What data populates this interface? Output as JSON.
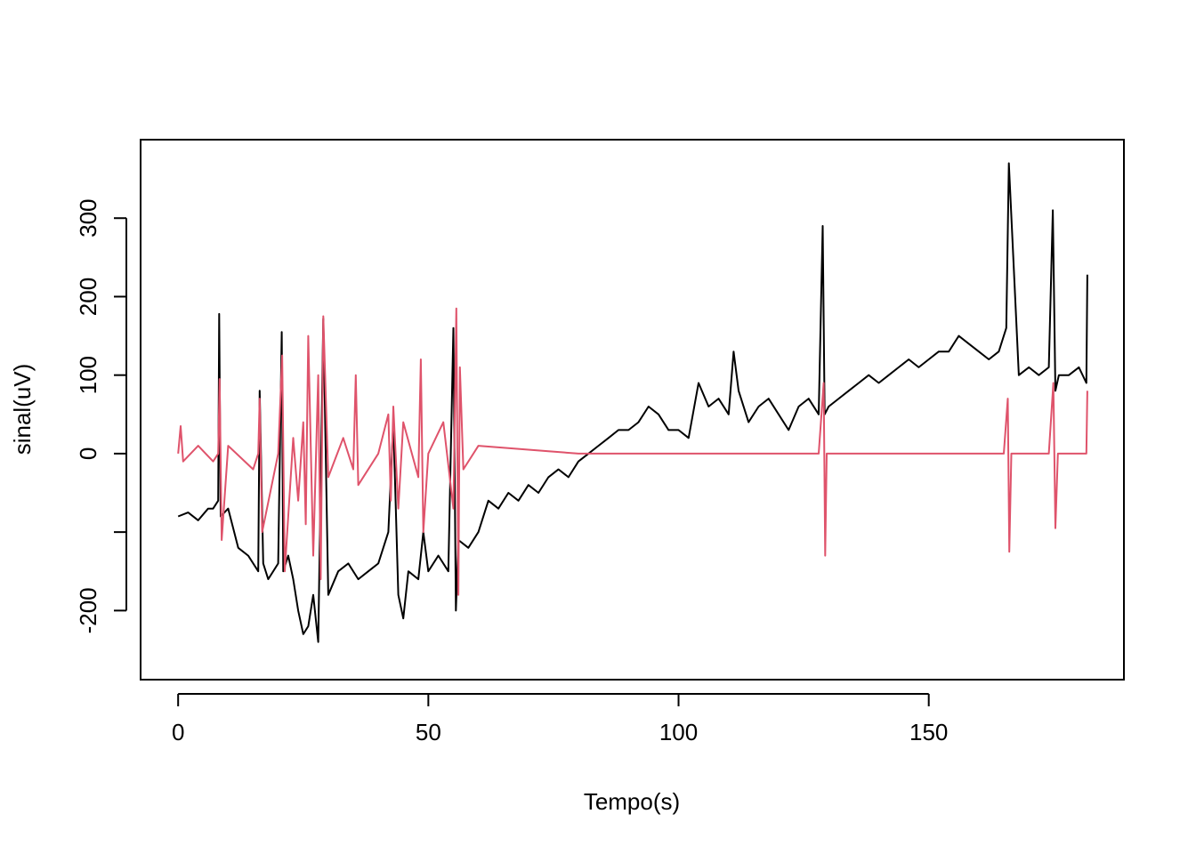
{
  "chart_data": {
    "type": "line",
    "title": "",
    "xlabel": "Tempo(s)",
    "ylabel": "sinal(uV)",
    "xlim": [
      -7.5,
      189
    ],
    "ylim": [
      -288,
      400
    ],
    "x_ticks": [
      0,
      50,
      100,
      150
    ],
    "x_tick_labels": [
      "0",
      "50",
      "100",
      "150"
    ],
    "y_ticks": [
      -200,
      -100,
      0,
      100,
      200,
      300
    ],
    "y_tick_labels": [
      "-200",
      "",
      "0",
      "100",
      "200",
      "300"
    ],
    "grid": false,
    "legend": "none",
    "series": [
      {
        "color": "#000000",
        "line_width": 2,
        "x": [
          0,
          2,
          4,
          6,
          7,
          8,
          8.2,
          8.5,
          10,
          12,
          14,
          16,
          16.3,
          17,
          18,
          20,
          20.7,
          21,
          22,
          23,
          24,
          25,
          26,
          27,
          28,
          29,
          30,
          32,
          34,
          36,
          38,
          40,
          42,
          43,
          44,
          45,
          46,
          48,
          49,
          50,
          52,
          54,
          55,
          55.5,
          56,
          58,
          60,
          62,
          64,
          66,
          68,
          70,
          72,
          74,
          76,
          78,
          80,
          82,
          84,
          86,
          88,
          90,
          92,
          94,
          96,
          98,
          100,
          102,
          104,
          106,
          108,
          110,
          111,
          112,
          114,
          116,
          118,
          120,
          122,
          124,
          126,
          128,
          128.8,
          129.2,
          130,
          132,
          134,
          136,
          138,
          140,
          142,
          144,
          146,
          148,
          150,
          152,
          154,
          156,
          158,
          160,
          162,
          164,
          165.5,
          166,
          168,
          170,
          172,
          174,
          174.8,
          175.3,
          176,
          178,
          180,
          181.5,
          181.7
        ],
        "y": [
          -80,
          -75,
          -85,
          -70,
          -70,
          -60,
          178,
          -80,
          -70,
          -120,
          -130,
          -150,
          80,
          -140,
          -160,
          -140,
          155,
          -150,
          -130,
          -160,
          -200,
          -230,
          -220,
          -180,
          -240,
          172,
          -180,
          -150,
          -140,
          -160,
          -150,
          -140,
          -100,
          40,
          -180,
          -210,
          -150,
          -160,
          -100,
          -150,
          -130,
          -150,
          160,
          -200,
          -110,
          -120,
          -100,
          -60,
          -70,
          -50,
          -60,
          -40,
          -50,
          -30,
          -20,
          -30,
          -10,
          0,
          10,
          20,
          30,
          30,
          40,
          60,
          50,
          30,
          30,
          20,
          90,
          60,
          70,
          50,
          130,
          80,
          40,
          60,
          70,
          50,
          30,
          60,
          70,
          50,
          290,
          50,
          60,
          70,
          80,
          90,
          100,
          90,
          100,
          110,
          120,
          110,
          120,
          130,
          130,
          150,
          140,
          130,
          120,
          130,
          160,
          370,
          100,
          110,
          100,
          110,
          310,
          80,
          100,
          100,
          110,
          90,
          228
        ]
      },
      {
        "color": "#DF536B",
        "line_width": 2,
        "x": [
          0,
          0.5,
          1,
          4,
          7,
          8,
          8.3,
          8.7,
          10,
          15,
          16,
          16.3,
          16.8,
          20,
          20.8,
          21.3,
          23,
          24,
          25,
          25.5,
          26,
          27,
          28,
          28.5,
          29,
          30,
          33,
          35,
          35.5,
          36,
          40,
          42,
          42.5,
          43,
          44,
          45,
          48,
          48.5,
          49,
          50,
          53,
          55,
          55.6,
          56,
          56.3,
          57,
          60,
          70,
          80,
          90,
          100,
          110,
          120,
          128,
          129,
          129.3,
          129.6,
          130,
          140,
          150,
          160,
          165,
          165.8,
          166.1,
          166.5,
          170,
          174,
          174.9,
          175.3,
          175.8,
          180,
          181.5,
          181.7
        ],
        "y": [
          0,
          35,
          -10,
          10,
          -10,
          0,
          95,
          -110,
          10,
          -20,
          0,
          70,
          -100,
          0,
          125,
          -150,
          20,
          -60,
          40,
          -90,
          150,
          -130,
          100,
          -160,
          175,
          -30,
          20,
          -20,
          100,
          -40,
          0,
          50,
          -60,
          60,
          -70,
          40,
          -30,
          120,
          -100,
          0,
          40,
          -70,
          185,
          -180,
          110,
          -20,
          10,
          5,
          0,
          0,
          0,
          0,
          0,
          0,
          90,
          -130,
          0,
          0,
          0,
          0,
          0,
          0,
          70,
          -125,
          0,
          0,
          0,
          90,
          -95,
          0,
          0,
          0,
          80
        ]
      }
    ]
  }
}
